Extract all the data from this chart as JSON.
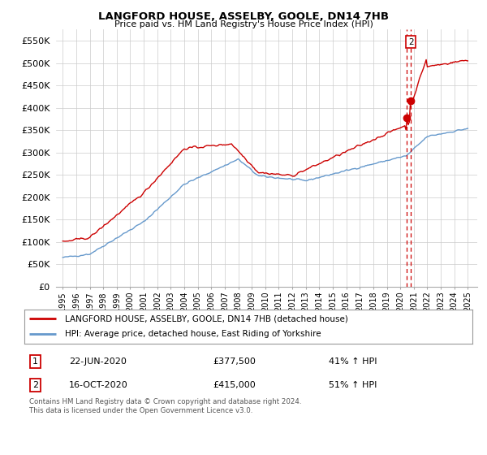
{
  "title": "LANGFORD HOUSE, ASSELBY, GOOLE, DN14 7HB",
  "subtitle": "Price paid vs. HM Land Registry's House Price Index (HPI)",
  "ylabel_ticks": [
    "£0",
    "£50K",
    "£100K",
    "£150K",
    "£200K",
    "£250K",
    "£300K",
    "£350K",
    "£400K",
    "£450K",
    "£500K",
    "£550K"
  ],
  "ytick_vals": [
    0,
    50000,
    100000,
    150000,
    200000,
    250000,
    300000,
    350000,
    400000,
    450000,
    500000,
    550000
  ],
  "ylim": [
    0,
    575000
  ],
  "legend_house": "LANGFORD HOUSE, ASSELBY, GOOLE, DN14 7HB (detached house)",
  "legend_hpi": "HPI: Average price, detached house, East Riding of Yorkshire",
  "annotation1_box": "1",
  "annotation1_date": "22-JUN-2020",
  "annotation1_price": "£377,500",
  "annotation1_hpi": "41% ↑ HPI",
  "annotation2_box": "2",
  "annotation2_date": "16-OCT-2020",
  "annotation2_price": "£415,000",
  "annotation2_hpi": "51% ↑ HPI",
  "footer": "Contains HM Land Registry data © Crown copyright and database right 2024.\nThis data is licensed under the Open Government Licence v3.0.",
  "house_color": "#cc0000",
  "hpi_color": "#6699cc",
  "dashed_line_color": "#cc0000",
  "marker_color": "#cc0000",
  "box_border_color": "#cc0000"
}
